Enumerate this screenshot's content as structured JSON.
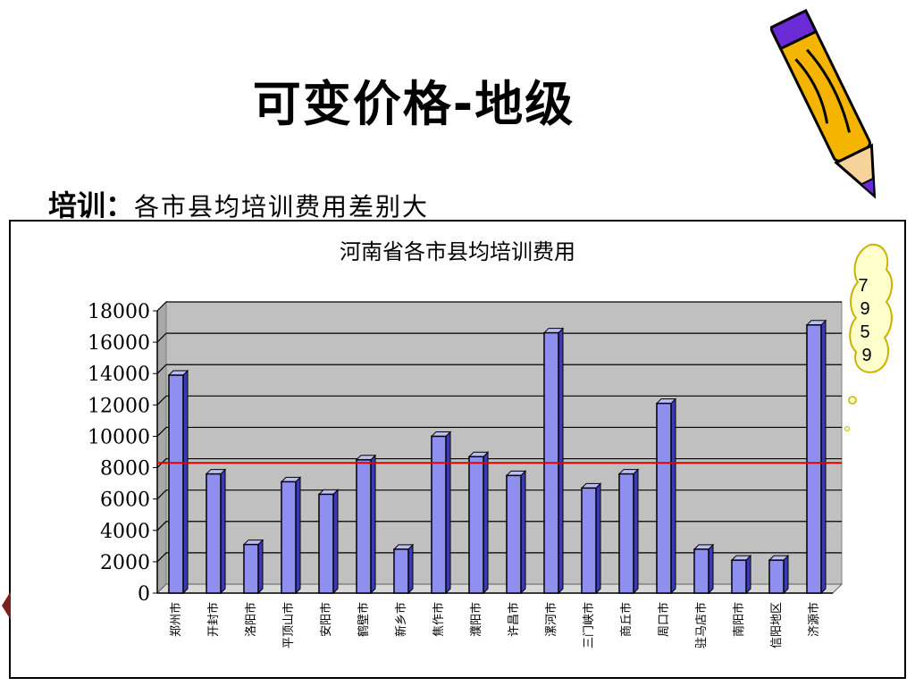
{
  "slide": {
    "title": "可变价格-地级",
    "subtitle_bold": "培训：",
    "subtitle_rest": "各市县均培训费用差别大"
  },
  "callout": {
    "digits": [
      "7",
      "9",
      "5",
      "9"
    ]
  },
  "chart_data": {
    "type": "bar",
    "title": "河南省各市县均培训费用",
    "xlabel": "",
    "ylabel": "",
    "ylim": [
      0,
      18000
    ],
    "yticks": [
      0,
      2000,
      4000,
      6000,
      8000,
      10000,
      12000,
      14000,
      16000,
      18000
    ],
    "categories": [
      "郑州市",
      "开封市",
      "洛阳市",
      "平顶山市",
      "安阳市",
      "鹤壁市",
      "新乡市",
      "焦作市",
      "濮阳市",
      "许昌市",
      "漯河市",
      "三门峡市",
      "商丘市",
      "周口市",
      "驻马店市",
      "南阳市",
      "信阳地区",
      "济源市"
    ],
    "values": [
      13900,
      7600,
      3100,
      7100,
      6300,
      8500,
      2800,
      10000,
      8700,
      7500,
      16600,
      6700,
      7600,
      12100,
      2800,
      2100,
      2100,
      17100
    ],
    "reference_line": {
      "value": 8300,
      "color": "#e00000"
    },
    "grid": true,
    "colors": {
      "bar_front": "#8f8ff0",
      "bar_side": "#3c3cb0",
      "bar_top": "#bdbdf6",
      "plot_bg": "#c0c0c0"
    }
  }
}
